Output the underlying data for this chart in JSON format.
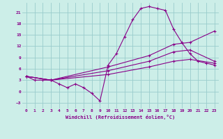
{
  "xlabel": "Windchill (Refroidissement éolien,°C)",
  "xlim": [
    -0.5,
    23.5
  ],
  "ylim": [
    -4.5,
    23.5
  ],
  "xticks": [
    0,
    1,
    2,
    3,
    4,
    5,
    6,
    7,
    8,
    9,
    10,
    11,
    12,
    13,
    14,
    15,
    16,
    17,
    18,
    19,
    20,
    21,
    22,
    23
  ],
  "yticks": [
    -3,
    0,
    3,
    6,
    9,
    12,
    15,
    18,
    21
  ],
  "bg_color": "#cceee8",
  "grid_color": "#99cccc",
  "line_color": "#880088",
  "line1_x": [
    0,
    1,
    2,
    3,
    4,
    5,
    6,
    7,
    8,
    9,
    10,
    11,
    12,
    13,
    14,
    15,
    16,
    17,
    18,
    19,
    20,
    21,
    22,
    23
  ],
  "line1_y": [
    4,
    3,
    3,
    3,
    2,
    1,
    2,
    1,
    -0.5,
    -2.5,
    7,
    10,
    14.5,
    19,
    22,
    22.5,
    22,
    21.5,
    16.5,
    13,
    10,
    8,
    7.5,
    7
  ],
  "line2_x": [
    0,
    3,
    10,
    15,
    18,
    20,
    23
  ],
  "line2_y": [
    4,
    3,
    6.5,
    9.5,
    12.5,
    13,
    16
  ],
  "line3_x": [
    0,
    3,
    10,
    15,
    18,
    20,
    23
  ],
  "line3_y": [
    4,
    3,
    5.5,
    8,
    10.5,
    11,
    8
  ],
  "line4_x": [
    0,
    3,
    10,
    15,
    18,
    20,
    23
  ],
  "line4_y": [
    4,
    3,
    4.5,
    6.5,
    8,
    8.5,
    7.5
  ]
}
